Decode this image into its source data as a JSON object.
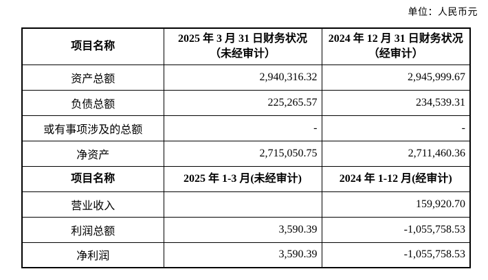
{
  "unit_label": "单位：人民币元",
  "table": {
    "header_balance": {
      "col1": "项目名称",
      "col2": "2025 年 3 月 31 日财务状况（未经审计）",
      "col3": "2024 年 12 月 31 日财务状况（经审计）"
    },
    "balance_rows": [
      {
        "label": "资产总额",
        "v1": "2,940,316.32",
        "v2": "2,945,999.67"
      },
      {
        "label": "负债总额",
        "v1": "225,265.57",
        "v2": "234,539.31"
      },
      {
        "label": "或有事项涉及的总额",
        "v1": "-",
        "v2": "-"
      },
      {
        "label": "净资产",
        "v1": "2,715,050.75",
        "v2": "2,711,460.36"
      }
    ],
    "header_income": {
      "col1": "项目名称",
      "col2": "2025 年 1-3 月(未经审计)",
      "col3": "2024 年 1-12 月(经审计)"
    },
    "income_rows": [
      {
        "label": "营业收入",
        "v1": "",
        "v2": "159,920.70"
      },
      {
        "label": "利润总额",
        "v1": "3,590.39",
        "v2": "-1,055,758.53"
      },
      {
        "label": "净利润",
        "v1": "3,590.39",
        "v2": "-1,055,758.53"
      }
    ]
  }
}
